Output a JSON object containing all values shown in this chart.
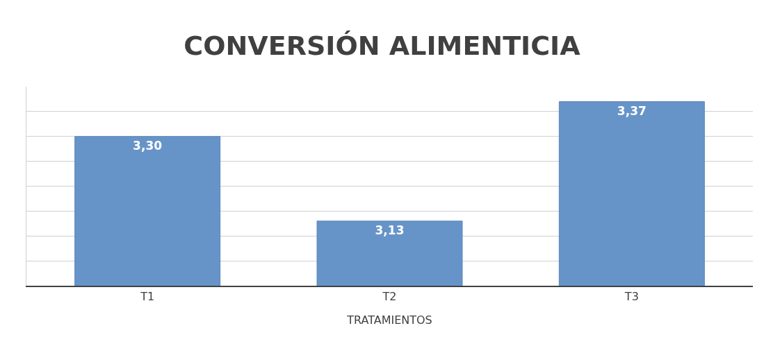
{
  "chart_data": {
    "type": "bar",
    "title": "CONVERSIÓN ALIMENTICIA",
    "xlabel": "TRATAMIENTOS",
    "categories": [
      "T1",
      "T2",
      "T3"
    ],
    "values": [
      3.3,
      3.13,
      3.37
    ],
    "color": "#6794c8",
    "value_labels": [
      "3,30",
      "3,13",
      "3,37"
    ],
    "ylim": [
      3.0,
      3.4
    ],
    "grid": "y",
    "tick_labels": "x"
  }
}
